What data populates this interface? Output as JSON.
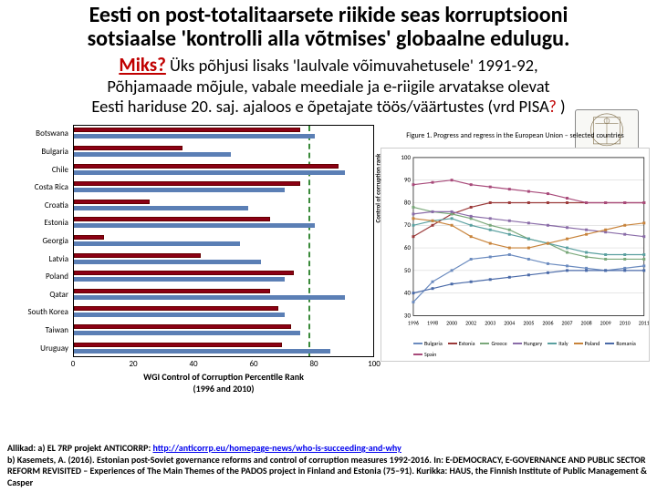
{
  "title_line1": "Eesti on post-totalitaarsete riikide seas korruptsiooni",
  "title_line2": "sotsiaalse 'kontrolli alla võtmises' globaalne edulugu.",
  "miks": "Miks?",
  "sub_line1": " Üks põhjusi lisaks 'laulvale võimuvahetusele' 1991-92,",
  "sub_line2": "Põhjamaade mõjule, vabale meediale ja e-riigile arvatakse olevat",
  "sub_line3_a": "Eesti hariduse 20. saj. ajaloos e õpetajate töös/väärtustes (vrd PISA",
  "sub_q": "?",
  "sub_line3_b": " )",
  "bar_chart": {
    "type": "bar",
    "x_title": "WGI Control of Corruption Percentile Rank",
    "x_title2": "(1996 and 2010)",
    "xlim": [
      0,
      100
    ],
    "xtick_step": 20,
    "categories": [
      "Botswana",
      "Bulgaria",
      "Chile",
      "Costa Rica",
      "Croatia",
      "Estonia",
      "Georgia",
      "Latvia",
      "Poland",
      "Qatar",
      "South Korea",
      "Taiwan",
      "Uruguay"
    ],
    "values_1996": [
      75,
      36,
      88,
      75,
      25,
      65,
      10,
      42,
      73,
      65,
      68,
      72,
      69
    ],
    "values_2010": [
      80,
      52,
      90,
      70,
      58,
      80,
      55,
      62,
      70,
      90,
      70,
      75,
      85
    ],
    "color_1996": "#8b0015",
    "color_2010": "#5b7fb5",
    "ref_line_x": 78,
    "ref_line_color": "#3a8a3a",
    "background": "#ffffff",
    "border_color": "#000000",
    "label_fontsize": 9
  },
  "line_chart": {
    "type": "line",
    "title": "Figure 1. Progress and regress in the European Union – selected countries",
    "ylabel": "Control of corruption rank",
    "ylim": [
      30,
      100
    ],
    "ytick_step": 10,
    "years": [
      1996,
      1998,
      2000,
      2002,
      2003,
      2004,
      2005,
      2006,
      2007,
      2008,
      2009,
      2010,
      2011
    ],
    "series": [
      {
        "name": "Bulgaria",
        "color": "#6b8bbf",
        "marker": "diamond",
        "values": [
          36,
          45,
          50,
          55,
          56,
          57,
          55,
          53,
          52,
          51,
          50,
          51,
          52
        ]
      },
      {
        "name": "Estonia",
        "color": "#9b3a3a",
        "marker": "square",
        "values": [
          65,
          70,
          75,
          78,
          80,
          80,
          80,
          80,
          80,
          80,
          80,
          80,
          80
        ]
      },
      {
        "name": "Greece",
        "color": "#7aa87a",
        "marker": "triangle",
        "values": [
          78,
          76,
          75,
          73,
          70,
          68,
          64,
          62,
          58,
          56,
          55,
          55,
          55
        ]
      },
      {
        "name": "Hungary",
        "color": "#8a6ca8",
        "marker": "x",
        "values": [
          75,
          76,
          76,
          74,
          73,
          72,
          71,
          70,
          69,
          68,
          67,
          66,
          65
        ]
      },
      {
        "name": "Italy",
        "color": "#5aa0a0",
        "marker": "star",
        "values": [
          70,
          72,
          73,
          70,
          68,
          66,
          64,
          62,
          60,
          58,
          57,
          57,
          57
        ]
      },
      {
        "name": "Poland",
        "color": "#c8833a",
        "marker": "circle",
        "values": [
          73,
          72,
          70,
          65,
          62,
          60,
          60,
          62,
          64,
          66,
          68,
          70,
          71
        ]
      },
      {
        "name": "Romania",
        "color": "#4a6aa8",
        "marker": "plus",
        "values": [
          40,
          42,
          44,
          45,
          46,
          47,
          48,
          49,
          50,
          50,
          50,
          50,
          50
        ]
      },
      {
        "name": "Spain",
        "color": "#a84a7a",
        "marker": "dash",
        "values": [
          88,
          89,
          90,
          88,
          87,
          86,
          85,
          84,
          82,
          80,
          80,
          80,
          80
        ]
      }
    ],
    "grid_color": "#cccccc",
    "background": "#ffffff",
    "axis_fontsize": 7
  },
  "footer": {
    "label": "Allikad:",
    "a_prefix": " a) EL 7RP projekt ANTICORRP: ",
    "a_link": "http://anticorrp.eu/homepage-news/who-is-succeeding-and-why",
    "b": "b) Kasemets, A. (2016). Estonian post-Soviet governance reforms and control of corruption measures 1992-2016. In: E-DEMOCRACY, E-GOVERNANCE AND PUBLIC SECTOR REFORM REVISITED – Experiences of The Main Themes of the PADOS project in Finland and Estonia (75–91). Kurikka: HAUS, the Finnish Institute of Public Management & Casper"
  }
}
